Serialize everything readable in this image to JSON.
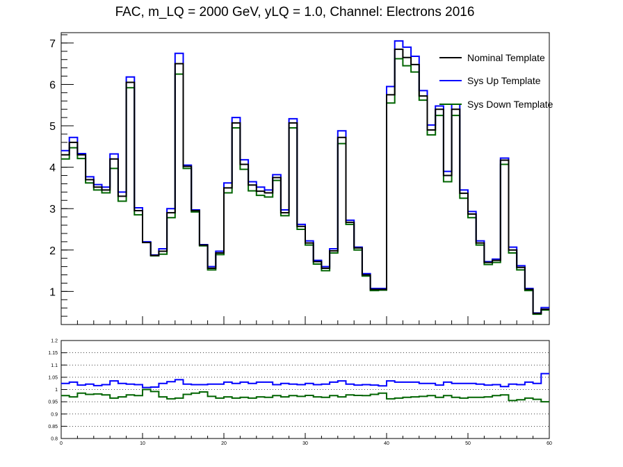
{
  "chart_data": [
    {
      "type": "line",
      "style": "step-histogram",
      "title": "FAC, m_LQ = 2000 GeV, yLQ = 1.0, Channel: Electrons 2016",
      "xlabel": "",
      "ylabel": "",
      "xlim": [
        0,
        60
      ],
      "ylim": [
        0.2,
        7.25
      ],
      "x_bin_edges_start": 0,
      "x_bin_width": 1,
      "yticks": [
        1,
        2,
        3,
        4,
        5,
        6,
        7
      ],
      "ytick_labels": [
        "1",
        "2",
        "3",
        "4",
        "5",
        "6",
        "7"
      ],
      "grid": false,
      "legend_position": "top-right",
      "series": [
        {
          "name": "Nominal Template",
          "color": "#000000",
          "values": [
            4.3,
            4.6,
            4.3,
            3.7,
            3.52,
            3.45,
            4.2,
            3.3,
            6.05,
            2.95,
            2.18,
            1.87,
            1.97,
            2.9,
            6.5,
            4.02,
            2.95,
            2.12,
            1.56,
            1.93,
            3.5,
            5.07,
            4.07,
            3.57,
            3.42,
            3.38,
            3.75,
            2.9,
            5.07,
            2.57,
            2.17,
            1.72,
            1.56,
            1.98,
            4.72,
            2.67,
            2.05,
            1.4,
            1.05,
            1.05,
            5.75,
            6.85,
            6.65,
            6.48,
            5.72,
            4.9,
            5.4,
            3.8,
            5.4,
            3.37,
            2.87,
            2.17,
            1.7,
            1.75,
            4.17,
            2.0,
            1.58,
            1.05,
            0.47,
            0.57
          ]
        },
        {
          "name": "Sys Up Template",
          "color": "#0000ff",
          "values": [
            4.4,
            4.72,
            4.33,
            3.77,
            3.58,
            3.52,
            4.32,
            3.4,
            6.18,
            3.02,
            2.2,
            1.88,
            2.03,
            3.0,
            6.75,
            4.05,
            2.97,
            2.13,
            1.6,
            1.97,
            3.62,
            5.2,
            4.18,
            3.65,
            3.52,
            3.45,
            3.82,
            2.97,
            5.17,
            2.62,
            2.22,
            1.75,
            1.6,
            2.03,
            4.88,
            2.72,
            2.07,
            1.43,
            1.07,
            1.07,
            5.95,
            7.05,
            6.9,
            6.68,
            5.85,
            5.02,
            5.48,
            3.9,
            5.52,
            3.45,
            2.93,
            2.22,
            1.72,
            1.78,
            4.22,
            2.07,
            1.62,
            1.07,
            0.48,
            0.61
          ]
        },
        {
          "name": "Sys Down Template",
          "color": "#006400",
          "values": [
            4.2,
            4.47,
            4.21,
            3.62,
            3.45,
            3.38,
            3.97,
            3.18,
            5.92,
            2.85,
            2.18,
            1.86,
            1.9,
            2.78,
            6.25,
            3.97,
            2.92,
            2.1,
            1.52,
            1.89,
            3.38,
            4.95,
            3.95,
            3.43,
            3.32,
            3.28,
            3.68,
            2.83,
            4.95,
            2.5,
            2.12,
            1.66,
            1.5,
            1.93,
            4.57,
            2.62,
            2.0,
            1.37,
            1.02,
            1.03,
            5.55,
            6.62,
            6.45,
            6.3,
            5.62,
            4.78,
            5.25,
            3.65,
            5.25,
            3.25,
            2.78,
            2.12,
            1.65,
            1.7,
            4.07,
            1.93,
            1.52,
            1.02,
            0.45,
            0.55
          ]
        }
      ]
    },
    {
      "type": "line",
      "style": "step-histogram",
      "title": "",
      "xlabel": "",
      "ylabel": "",
      "xlim": [
        0,
        60
      ],
      "ylim": [
        0.8,
        1.2
      ],
      "xticks": [
        0,
        10,
        20,
        30,
        40,
        50,
        60
      ],
      "xtick_labels": [
        "0",
        "10",
        "20",
        "30",
        "40",
        "50",
        "60"
      ],
      "yticks": [
        0.8,
        0.85,
        0.9,
        0.95,
        1,
        1.05,
        1.1,
        1.15,
        1.2
      ],
      "ytick_labels": [
        "0.8",
        "0.85",
        "0.9",
        "0.95",
        "1",
        "1.05",
        "1.1",
        "1.15",
        "1.2"
      ],
      "grid": "horizontal-dotted",
      "series": [
        {
          "color": "#0000ff",
          "values": [
            1.025,
            1.03,
            1.018,
            1.022,
            1.016,
            1.02,
            1.035,
            1.025,
            1.022,
            1.02,
            1.008,
            1.01,
            1.025,
            1.032,
            1.04,
            1.022,
            1.02,
            1.02,
            1.022,
            1.022,
            1.03,
            1.025,
            1.03,
            1.025,
            1.03,
            1.03,
            1.02,
            1.025,
            1.022,
            1.02,
            1.025,
            1.02,
            1.022,
            1.03,
            1.035,
            1.022,
            1.018,
            1.02,
            1.018,
            1.015,
            1.035,
            1.03,
            1.03,
            1.03,
            1.025,
            1.025,
            1.018,
            1.03,
            1.025,
            1.025,
            1.025,
            1.022,
            1.018,
            1.02,
            1.012,
            1.022,
            1.02,
            1.03,
            1.025,
            1.065
          ]
        },
        {
          "color": "#006400",
          "values": [
            0.975,
            0.97,
            0.985,
            0.98,
            0.982,
            0.978,
            0.965,
            0.97,
            0.978,
            0.975,
            1.0,
            0.992,
            0.97,
            0.962,
            0.965,
            0.98,
            0.985,
            0.99,
            0.972,
            0.965,
            0.97,
            0.965,
            0.968,
            0.965,
            0.97,
            0.968,
            0.975,
            0.97,
            0.975,
            0.972,
            0.976,
            0.97,
            0.968,
            0.975,
            0.97,
            0.978,
            0.976,
            0.975,
            0.98,
            0.985,
            0.962,
            0.965,
            0.968,
            0.97,
            0.972,
            0.975,
            0.968,
            0.975,
            0.968,
            0.965,
            0.968,
            0.968,
            0.97,
            0.975,
            0.978,
            0.955,
            0.958,
            0.965,
            0.96,
            0.95
          ]
        }
      ]
    }
  ]
}
